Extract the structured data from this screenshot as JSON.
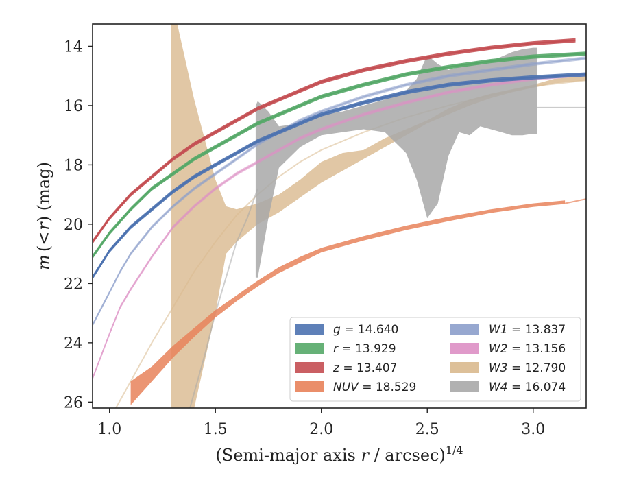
{
  "chart_data": {
    "type": "line",
    "xlabel_main": "(Semi-major axis ",
    "xlabel_var": "r",
    "xlabel_unit": " / arcsec)",
    "xlabel_exp": "1/4",
    "ylabel_m": "m",
    "ylabel_mid": "(<",
    "ylabel_r": "r",
    "ylabel_tail": ") (mag)",
    "xlim": [
      0.92,
      3.25
    ],
    "ylim": [
      26.2,
      13.25
    ],
    "y_inverted": true,
    "grid": false,
    "legend_position": "lower-right",
    "xticks": [
      1.0,
      1.5,
      2.0,
      2.5,
      3.0
    ],
    "xtick_labels": [
      "1.0",
      "1.5",
      "2.0",
      "2.5",
      "3.0"
    ],
    "yticks": [
      14,
      16,
      18,
      20,
      22,
      24,
      26
    ],
    "ytick_labels": [
      "14",
      "16",
      "18",
      "20",
      "22",
      "24",
      "26"
    ],
    "series": [
      {
        "name": "g",
        "legend_value": "= 14.640",
        "color": "#4c72b0",
        "kind": "curve",
        "x": [
          0.92,
          1.0,
          1.1,
          1.2,
          1.3,
          1.4,
          1.5,
          1.6,
          1.7,
          1.8,
          1.9,
          2.0,
          2.2,
          2.4,
          2.6,
          2.8,
          3.0,
          3.25
        ],
        "y": [
          21.8,
          20.9,
          20.1,
          19.5,
          18.9,
          18.4,
          18.0,
          17.6,
          17.2,
          16.9,
          16.6,
          16.3,
          15.9,
          15.55,
          15.3,
          15.15,
          15.05,
          14.95
        ],
        "halfwidth": 0.07
      },
      {
        "name": "r",
        "legend_value": "= 13.929",
        "color": "#55a868",
        "kind": "curve",
        "x": [
          0.92,
          1.0,
          1.1,
          1.2,
          1.3,
          1.4,
          1.5,
          1.6,
          1.7,
          1.8,
          1.9,
          2.0,
          2.2,
          2.4,
          2.6,
          2.8,
          3.0,
          3.25
        ],
        "y": [
          21.1,
          20.3,
          19.5,
          18.8,
          18.3,
          17.8,
          17.4,
          17.0,
          16.6,
          16.3,
          16.0,
          15.7,
          15.3,
          14.95,
          14.7,
          14.5,
          14.35,
          14.25
        ],
        "halfwidth": 0.07
      },
      {
        "name": "z",
        "legend_value": "= 13.407",
        "color": "#c44e52",
        "kind": "curve",
        "x": [
          0.92,
          1.0,
          1.1,
          1.2,
          1.3,
          1.4,
          1.5,
          1.6,
          1.7,
          1.8,
          1.9,
          2.0,
          2.2,
          2.4,
          2.6,
          2.8,
          3.0,
          3.2
        ],
        "y": [
          20.6,
          19.8,
          19.0,
          18.4,
          17.8,
          17.3,
          16.9,
          16.5,
          16.1,
          15.8,
          15.5,
          15.2,
          14.8,
          14.5,
          14.25,
          14.05,
          13.9,
          13.8
        ],
        "halfwidth": 0.07
      },
      {
        "name": "NUV",
        "legend_value": "= 18.529",
        "color": "#e8825a",
        "kind": "band",
        "x": [
          1.1,
          1.2,
          1.3,
          1.4,
          1.5,
          1.6,
          1.7,
          1.8,
          1.9,
          2.0,
          2.2,
          2.4,
          2.6,
          2.8,
          3.0,
          3.15
        ],
        "y_low": [
          25.3,
          24.8,
          24.1,
          23.5,
          22.9,
          22.4,
          21.9,
          21.45,
          21.1,
          20.8,
          20.4,
          20.05,
          19.75,
          19.5,
          19.3,
          19.2
        ],
        "y_high": [
          26.1,
          25.3,
          24.5,
          23.8,
          23.15,
          22.6,
          22.1,
          21.65,
          21.3,
          20.95,
          20.55,
          20.2,
          19.9,
          19.62,
          19.42,
          19.32
        ],
        "tail_x": [
          3.15,
          3.25
        ],
        "tail_y": [
          19.3,
          19.15
        ],
        "opacity": 0.85
      },
      {
        "name": "W1",
        "legend_value": "= 13.837",
        "color": "#8c9fcb",
        "kind": "curve_faded",
        "x": [
          0.92,
          1.0,
          1.05,
          1.1,
          1.2,
          1.3,
          1.4,
          1.5,
          1.6,
          1.7,
          1.8,
          1.9,
          2.0,
          2.2,
          2.4,
          2.6,
          2.8,
          3.0,
          3.25
        ],
        "y": [
          23.4,
          22.3,
          21.6,
          21.0,
          20.1,
          19.4,
          18.8,
          18.3,
          17.8,
          17.3,
          16.9,
          16.5,
          16.2,
          15.7,
          15.3,
          15.0,
          14.8,
          14.6,
          14.4
        ],
        "halfwidth": 0.06
      },
      {
        "name": "W2",
        "legend_value": "= 13.156",
        "color": "#dd8fc4",
        "kind": "curve_faded",
        "x": [
          0.92,
          1.0,
          1.05,
          1.1,
          1.2,
          1.3,
          1.4,
          1.5,
          1.6,
          1.7,
          1.8,
          1.9,
          2.0,
          2.2,
          2.4,
          2.6,
          2.8,
          3.0,
          3.25
        ],
        "y": [
          25.2,
          23.7,
          22.8,
          22.2,
          21.1,
          20.1,
          19.4,
          18.8,
          18.3,
          17.9,
          17.5,
          17.1,
          16.8,
          16.3,
          15.9,
          15.55,
          15.3,
          15.1,
          14.95
        ],
        "halfwidth": 0.06
      },
      {
        "name": "W3",
        "legend_value": "= 12.790",
        "color": "#d9b98e",
        "kind": "band_wild",
        "x": [
          1.29,
          1.32,
          1.4,
          1.5,
          1.55,
          1.6,
          1.7,
          1.8,
          1.9,
          2.0,
          2.1,
          2.2,
          2.3,
          2.4,
          2.5,
          2.6,
          2.7,
          2.8,
          2.9,
          3.0,
          3.1,
          3.25
        ],
        "y_low": [
          13.25,
          13.25,
          15.8,
          18.5,
          19.4,
          19.5,
          19.3,
          19.0,
          18.5,
          17.9,
          17.6,
          17.5,
          17.1,
          16.8,
          16.5,
          16.1,
          15.8,
          15.6,
          15.45,
          15.3,
          15.1,
          15.0
        ],
        "y_high": [
          26.2,
          26.2,
          26.2,
          23.0,
          21.0,
          20.6,
          20.0,
          19.6,
          19.1,
          18.6,
          18.2,
          17.8,
          17.4,
          17.0,
          16.6,
          16.3,
          16.0,
          15.75,
          15.55,
          15.4,
          15.25,
          15.15
        ],
        "faded_x": [
          1.03,
          1.1,
          1.2,
          1.3,
          1.4,
          1.5,
          1.6,
          1.7,
          1.8,
          1.9,
          2.0,
          2.2,
          2.4,
          2.6,
          2.8,
          3.0,
          3.25
        ],
        "faded_y": [
          26.2,
          25.3,
          24.0,
          22.8,
          21.6,
          20.6,
          19.7,
          19.0,
          18.4,
          17.9,
          17.5,
          16.9,
          16.4,
          16.0,
          15.65,
          15.35,
          15.15
        ],
        "opacity": 0.8
      },
      {
        "name": "W4",
        "legend_value": "= 16.074",
        "color": "#a8a8a8",
        "kind": "band_wild",
        "x": [
          1.69,
          1.7,
          1.75,
          1.8,
          1.9,
          2.0,
          2.1,
          2.2,
          2.3,
          2.4,
          2.45,
          2.5,
          2.55,
          2.6,
          2.65,
          2.7,
          2.75,
          2.8,
          2.85,
          2.9,
          2.95,
          3.0,
          3.02
        ],
        "y_low": [
          16.0,
          15.85,
          16.2,
          16.7,
          16.6,
          16.3,
          16.2,
          16.0,
          15.8,
          15.5,
          15.1,
          14.3,
          14.6,
          14.8,
          14.7,
          14.6,
          14.6,
          14.5,
          14.35,
          14.2,
          14.1,
          14.05,
          14.05
        ],
        "y_high": [
          21.8,
          21.8,
          19.8,
          18.1,
          17.4,
          17.0,
          16.9,
          16.8,
          16.9,
          17.6,
          18.5,
          19.8,
          19.3,
          17.7,
          16.9,
          17.0,
          16.7,
          16.8,
          16.9,
          17.0,
          17.0,
          16.95,
          16.95
        ],
        "faded_x": [
          1.38,
          1.45,
          1.5,
          1.55,
          1.6,
          1.65,
          1.7
        ],
        "faded_y": [
          26.2,
          24.4,
          23.0,
          21.8,
          20.6,
          19.8,
          18.8
        ],
        "flat_x": [
          3.02,
          3.25
        ],
        "flat_y": [
          16.07,
          16.07
        ],
        "opacity": 0.85
      }
    ]
  }
}
